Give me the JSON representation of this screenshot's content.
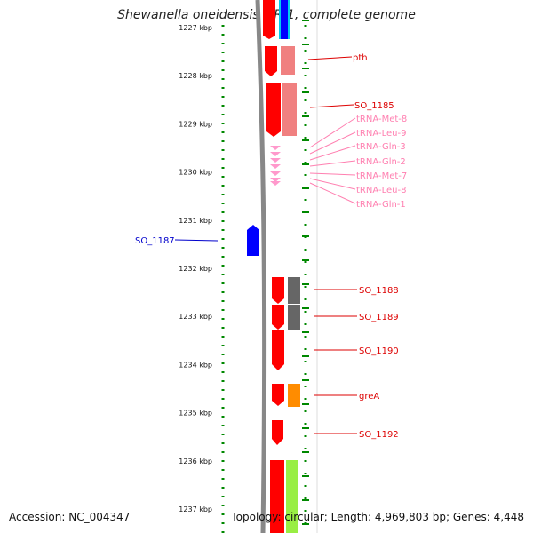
{
  "title": "Shewanella oneidensis MR-1, complete genome",
  "accession": "Accession: NC_004347",
  "info": "Topology: circular; Length: 4,969,803 bp; Genes: 4,448",
  "axis": {
    "unit": "kbp",
    "ticks": [
      "1227 kbp",
      "1228 kbp",
      "1229 kbp",
      "1230 kbp",
      "1231 kbp",
      "1232 kbp",
      "1233 kbp",
      "1234 kbp",
      "1235 kbp",
      "1236 kbp",
      "1237 kbp"
    ]
  },
  "colors": {
    "cds": "#ff0000",
    "cds_light": "#f08080",
    "trna": "#ff99cc",
    "reverse_cds": "#0000ff",
    "cog_grey": "#666666",
    "cog_orange": "#ff8c00",
    "cog_lime": "#99ee44",
    "cog_cyan": "#00ccee",
    "label_red": "#dd0000",
    "label_pink": "#ff7fb0",
    "label_blue": "#0000cc",
    "tick_green": "#008800",
    "backbone": "#888888"
  },
  "labels": {
    "pth": "pth",
    "so1185": "SO_1185",
    "trna": [
      "tRNA-Met-8",
      "tRNA-Leu-9",
      "tRNA-Gln-3",
      "tRNA-Gln-2",
      "tRNA-Met-7",
      "tRNA-Leu-8",
      "tRNA-Gln-1"
    ],
    "so1187": "SO_1187",
    "so1188": "SO_1188",
    "so1189": "SO_1189",
    "so1190": "SO_1190",
    "grea": "greA",
    "so1192": "SO_1192"
  }
}
